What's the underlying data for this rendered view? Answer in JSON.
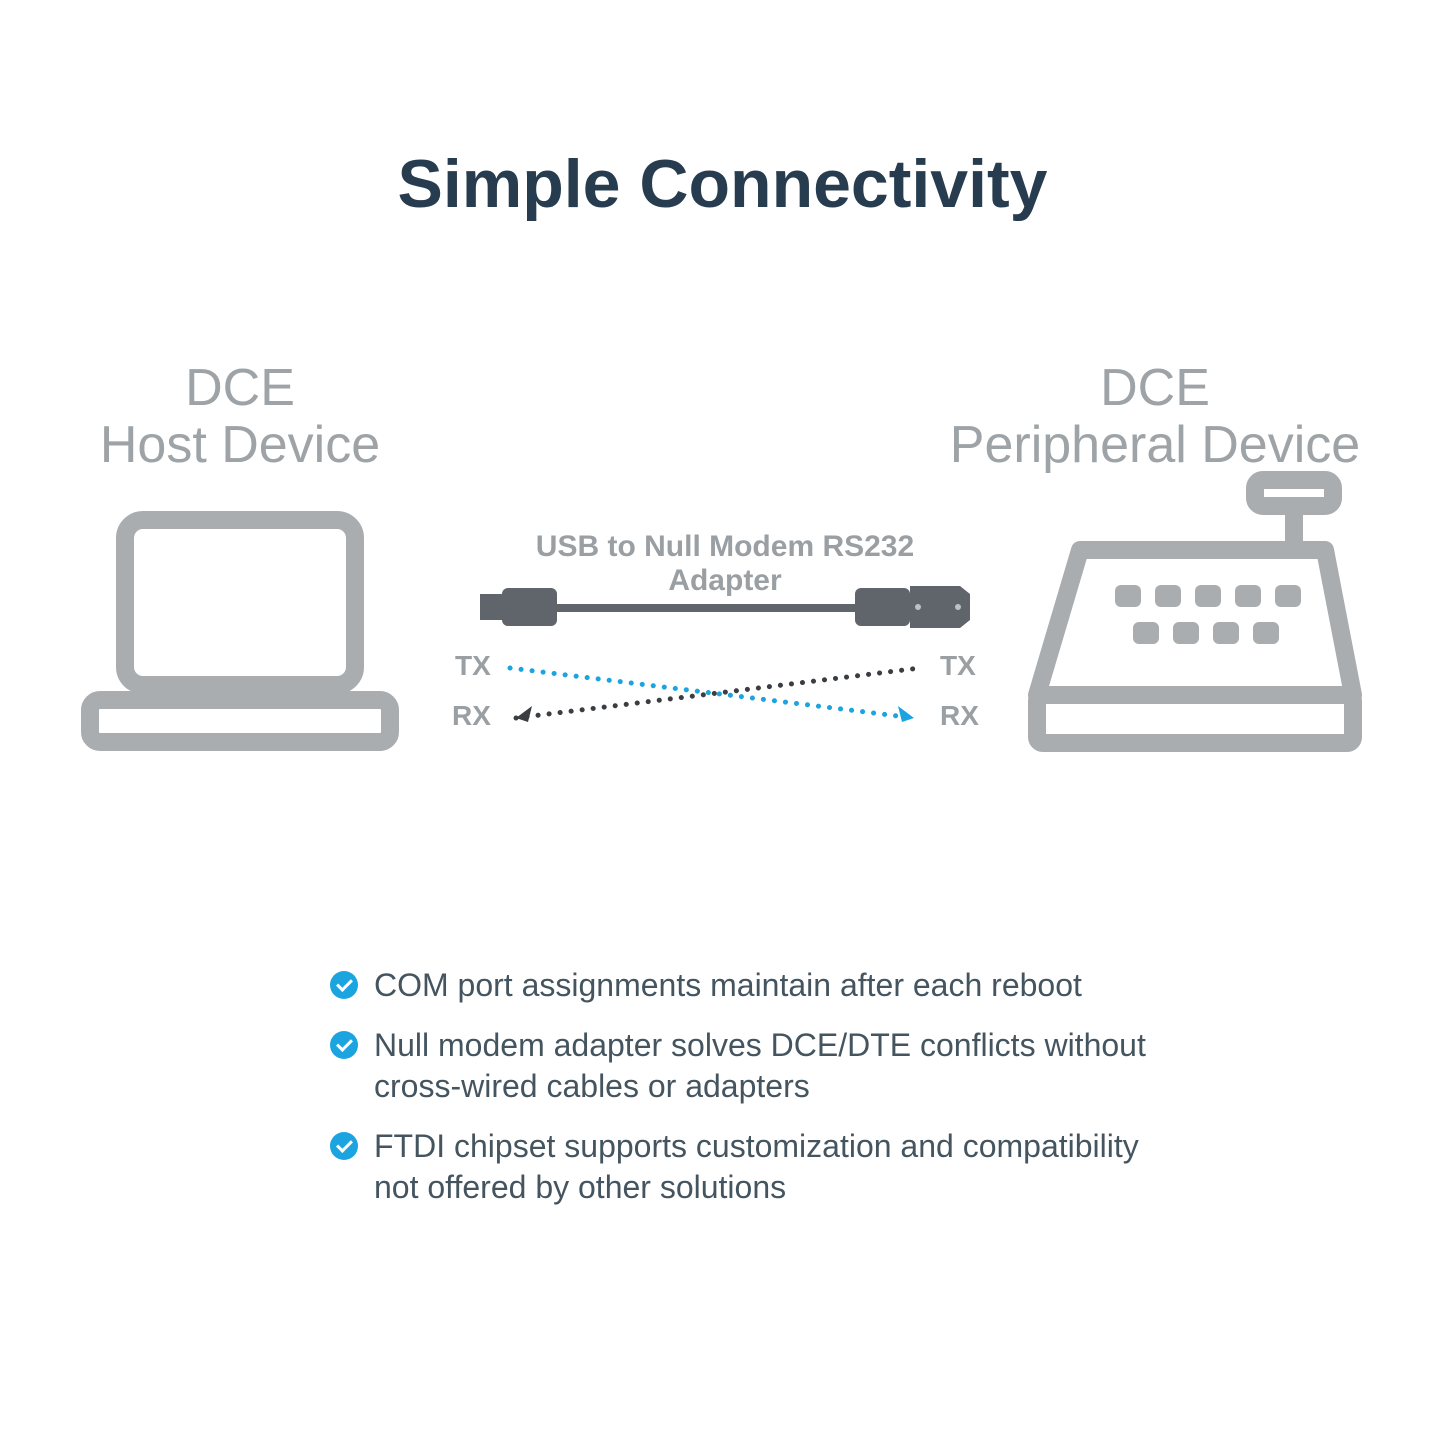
{
  "title": "Simple Connectivity",
  "host_label": "DCE\nHost Device",
  "peripheral_label": "DCE\nPeripheral Device",
  "adapter_label": "USB to Null Modem RS232 Adapter",
  "pins": {
    "tx": "TX",
    "rx": "RX"
  },
  "bullets": [
    "COM port assignments maintain after each reboot",
    "Null modem adapter solves DCE/DTE conflicts without cross-wired cables or adapters",
    "FTDI chipset supports customization and compatibility not offered by other solutions"
  ],
  "colors": {
    "title": "#283c4f",
    "label_light": "#9da3a6",
    "label_medium": "#9a9fa3",
    "icon_gray": "#a9adb0",
    "icon_dark": "#5f656a",
    "accent_blue": "#1ca4e0",
    "bullet_text": "#455560",
    "dash_dark": "#3a3e42",
    "background": "#ffffff"
  },
  "diagram": {
    "type": "infographic",
    "nodes": [
      {
        "id": "host",
        "kind": "laptop",
        "label": "DCE Host Device"
      },
      {
        "id": "adapter",
        "kind": "cable",
        "label": "USB to Null Modem RS232 Adapter"
      },
      {
        "id": "peripheral",
        "kind": "cash-register",
        "label": "DCE Peripheral Device"
      }
    ],
    "crossover": [
      {
        "from": "host.TX",
        "to": "peripheral.RX",
        "color": "#1ca4e0",
        "style": "dotted",
        "arrow_end": "peripheral"
      },
      {
        "from": "host.RX",
        "to": "peripheral.TX",
        "color": "#3a3e42",
        "style": "dotted",
        "arrow_end": "host"
      }
    ],
    "line_dot_radius": 2.5,
    "line_dot_gap": 10,
    "icon_stroke_width": 16,
    "title_fontsize": 68,
    "label_fontsize": 52,
    "adapter_label_fontsize": 30,
    "pin_fontsize": 28,
    "bullet_fontsize": 32
  }
}
